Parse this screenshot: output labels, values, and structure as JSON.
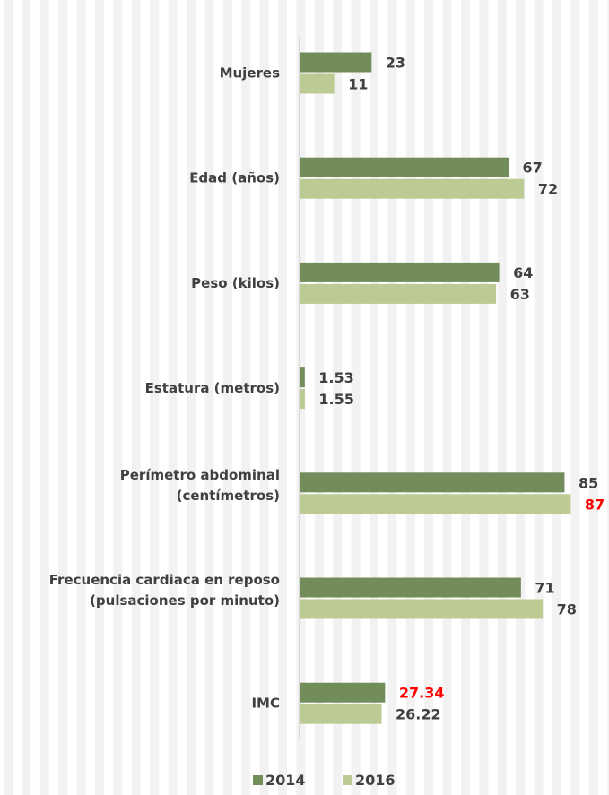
{
  "chart_data": {
    "type": "bar",
    "orientation": "horizontal",
    "categories": [
      [
        "Mujeres"
      ],
      [
        "Edad (años)"
      ],
      [
        "Peso (kilos)"
      ],
      [
        "Estatura (metros)"
      ],
      [
        "Perímetro abdominal",
        "(centímetros)"
      ],
      [
        "Frecuencia cardiaca en reposo",
        "(pulsaciones por minuto)"
      ],
      [
        "IMC"
      ]
    ],
    "series": [
      {
        "name": "2014",
        "color": "#728c5a",
        "values": [
          23,
          67,
          64,
          1.53,
          85,
          71,
          27.34
        ],
        "labels": [
          "23",
          "67",
          "64",
          "1.53",
          "85",
          "71",
          "27.34"
        ],
        "label_colors": [
          "#404040",
          "#404040",
          "#404040",
          "#404040",
          "#404040",
          "#404040",
          "#ff0000"
        ]
      },
      {
        "name": "2016",
        "color": "#bccb93",
        "values": [
          11,
          72,
          63,
          1.55,
          87,
          78,
          26.22
        ],
        "labels": [
          "11",
          "72",
          "63",
          "1.55",
          "87",
          "78",
          "26.22"
        ],
        "label_colors": [
          "#404040",
          "#404040",
          "#404040",
          "#404040",
          "#ff0000",
          "#404040",
          "#404040"
        ]
      }
    ],
    "xlim": [
      0,
      100
    ],
    "grid": "vertical stripes",
    "legend_position": "bottom",
    "title": "",
    "xlabel": "",
    "ylabel": ""
  }
}
